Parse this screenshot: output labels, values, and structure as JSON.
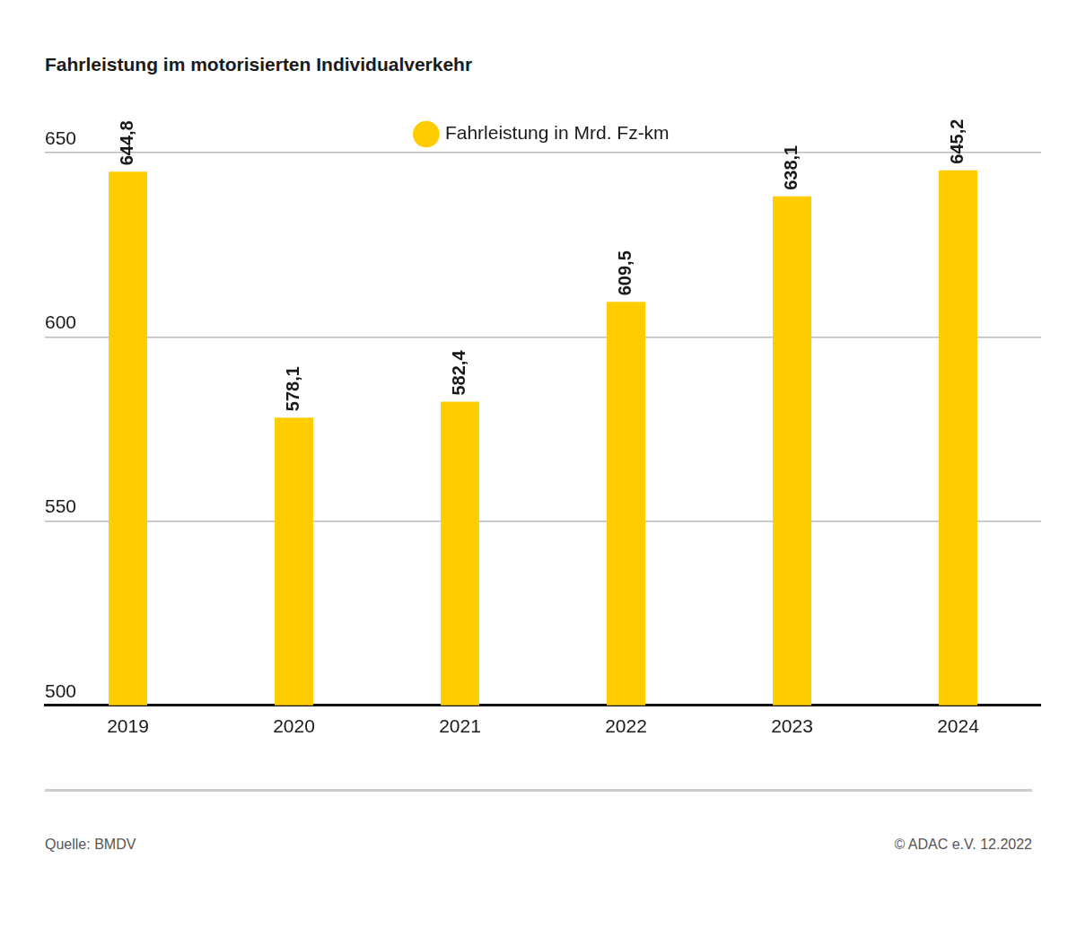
{
  "chart_data": {
    "type": "bar",
    "title": "Fahrleistung im motorisierten Individualverkehr",
    "categories": [
      "2019",
      "2020",
      "2021",
      "2022",
      "2023",
      "2024"
    ],
    "series": [
      {
        "name": "Fahrleistung in Mrd. Fz-km",
        "color": "#ffcc00",
        "values": [
          644.8,
          578.1,
          582.4,
          609.5,
          638.1,
          645.2
        ],
        "value_labels": [
          "644,8",
          "578,1",
          "582,4",
          "609,5",
          "638,1",
          "645,2"
        ]
      }
    ],
    "ylim": [
      500,
      650
    ],
    "yticks": [
      500,
      550,
      600,
      650
    ],
    "grid": true,
    "legend": "top",
    "data_labels": true,
    "annotations": [
      "Quelle: BMDV",
      "© ADAC e.V. 12.2022"
    ]
  }
}
